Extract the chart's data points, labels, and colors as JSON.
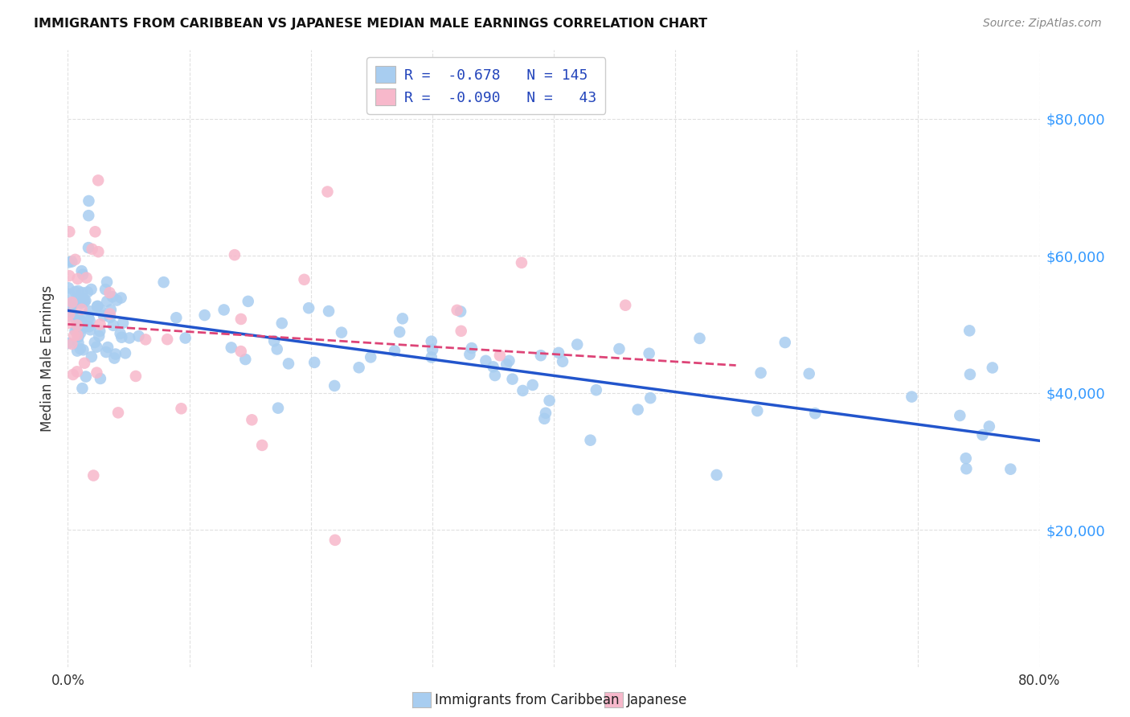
{
  "title": "IMMIGRANTS FROM CARIBBEAN VS JAPANESE MEDIAN MALE EARNINGS CORRELATION CHART",
  "source": "Source: ZipAtlas.com",
  "ylabel": "Median Male Earnings",
  "ytick_labels": [
    "$20,000",
    "$40,000",
    "$60,000",
    "$80,000"
  ],
  "ytick_values": [
    20000,
    40000,
    60000,
    80000
  ],
  "legend_label1": "Immigrants from Caribbean",
  "legend_label2": "Japanese",
  "color_caribbean": "#a8cdf0",
  "color_japanese": "#f7b8cb",
  "color_line_caribbean": "#2255cc",
  "color_line_japanese": "#dd4477",
  "xlim": [
    0.0,
    0.8
  ],
  "ylim": [
    0,
    90000
  ],
  "carib_line_x0": 0.0,
  "carib_line_y0": 52000,
  "carib_line_x1": 0.8,
  "carib_line_y1": 33000,
  "japan_line_x0": 0.0,
  "japan_line_y0": 50000,
  "japan_line_x1": 0.55,
  "japan_line_y1": 44000,
  "background_color": "#ffffff",
  "grid_color": "#e0e0e0",
  "title_color": "#111111",
  "source_color": "#888888",
  "ytick_color": "#3399ff",
  "xtick_color": "#333333",
  "ylabel_color": "#333333"
}
